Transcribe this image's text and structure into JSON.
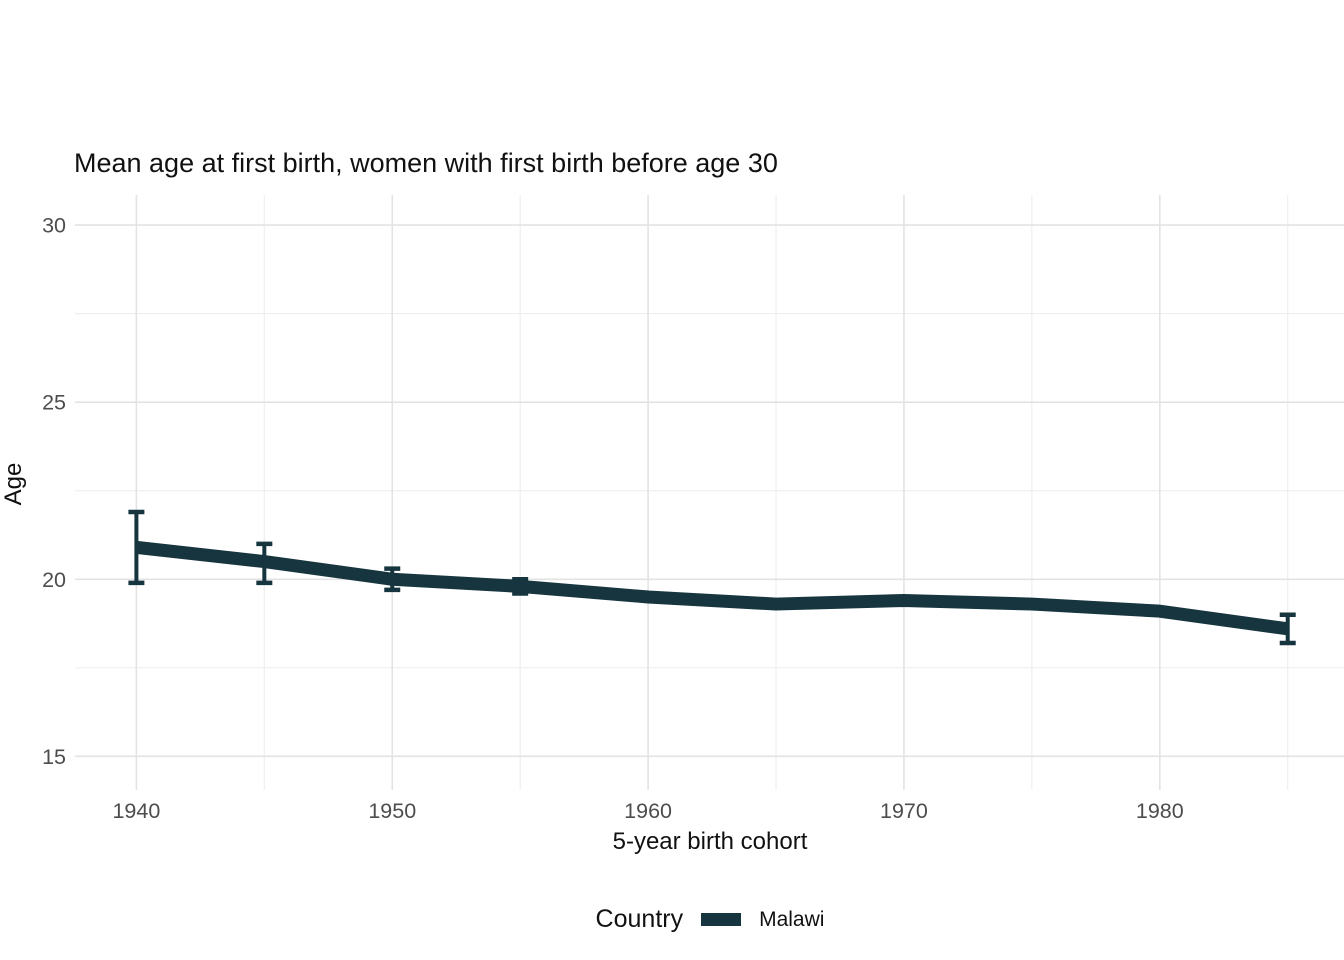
{
  "figure": {
    "title": "Mean age at first birth, women with first birth before age 30",
    "x_axis_label": "5-year birth cohort",
    "y_axis_label": "Age",
    "legend": {
      "title": "Country",
      "entries": [
        {
          "label": "Malawi",
          "color": "#16353f"
        }
      ]
    }
  },
  "chart_data": {
    "type": "line",
    "title": "Mean age at first birth, women with first birth before age 30",
    "xlabel": "5-year birth cohort",
    "ylabel": "Age",
    "series": [
      {
        "name": "Malawi",
        "color": "#16353f",
        "x": [
          1940,
          1945,
          1950,
          1955,
          1960,
          1965,
          1970,
          1975,
          1980,
          1985
        ],
        "y": [
          20.9,
          20.5,
          20.0,
          19.8,
          19.5,
          19.3,
          19.4,
          19.3,
          19.1,
          18.6
        ],
        "ci_low": [
          19.9,
          19.9,
          19.7,
          19.6,
          null,
          null,
          null,
          null,
          null,
          18.2
        ],
        "ci_high": [
          21.9,
          21.0,
          20.3,
          20.0,
          null,
          null,
          null,
          null,
          null,
          19.0
        ]
      }
    ],
    "x_ticks": [
      1940,
      1950,
      1960,
      1970,
      1980
    ],
    "x_minor_ticks": [
      1945,
      1955,
      1965,
      1975,
      1985
    ],
    "y_ticks": [
      15,
      20,
      25,
      30
    ],
    "y_minor_ticks": [
      17.5,
      22.5,
      27.5
    ],
    "xlim": [
      1937.6,
      1987.2
    ],
    "ylim": [
      14.05,
      30.85
    ],
    "grid": true,
    "legend_position": "bottom",
    "colors": {
      "grid_major": "#e3e3e3",
      "grid_minor": "#efefef",
      "tick_label": "#4d4d4d",
      "title_text": "#111111"
    }
  }
}
